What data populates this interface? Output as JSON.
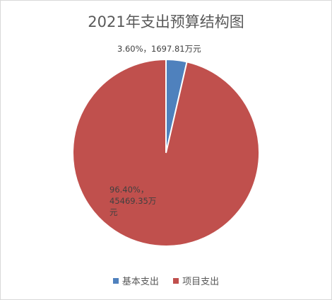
{
  "chart_data": {
    "type": "pie",
    "title": "2021年支出预算结构图",
    "categories": [
      "基本支出",
      "项目支出"
    ],
    "values": [
      3.6,
      96.4
    ],
    "amounts": [
      1697.81,
      45469.35
    ],
    "colors": [
      "#4f81bd",
      "#c0504d"
    ],
    "data_labels": [
      [
        "3.60%，1697.81万元"
      ],
      [
        "96.40%，",
        "45469.35万",
        "元"
      ]
    ],
    "legend": {
      "position": "bottom",
      "entries": [
        "基本支出",
        "项目支出"
      ]
    }
  }
}
